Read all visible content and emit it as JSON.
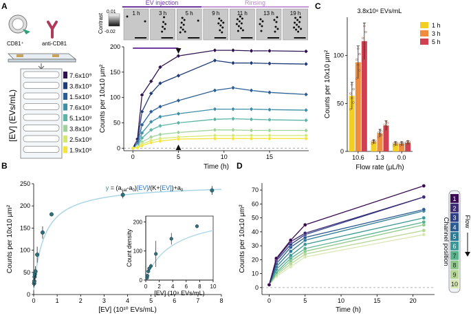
{
  "panels": {
    "A": "A",
    "B": "B",
    "C": "C",
    "D": "D"
  },
  "colors": {
    "conc": [
      "#2f1250",
      "#1f3c78",
      "#2a5f96",
      "#3d8ea6",
      "#5cb4a7",
      "#9fd39b",
      "#d3e86e",
      "#f5e53a"
    ],
    "flow": {
      "h1": "#f2cf24",
      "h3": "#ef8c3d",
      "h5": "#d13f53"
    },
    "channels": [
      "#3a0a52",
      "#3d2b78",
      "#2e3f86",
      "#2a5b92",
      "#2e7b96",
      "#3b9896",
      "#58b28b",
      "#8ec98a",
      "#b6d793",
      "#d9e7b5"
    ],
    "inj": "#6d3aa0",
    "rinse": "#c39ad6",
    "fit": "#a9d6e6"
  },
  "panelA": {
    "schematic": {
      "cd81_label": "CD81⁺",
      "anti_label": "anti-CD81",
      "yaxis_label": "[EV] (EVs/mL)",
      "concentrations": [
        "7.6x10⁹",
        "3.8x10⁹",
        "1.5x10⁹",
        "7.6x10⁸",
        "5.1x10⁸",
        "3.8x10⁸",
        "2.5x10⁸",
        "1.9x10⁸"
      ]
    },
    "strip": {
      "inj_label": "EV injection",
      "rinse_label": "Rinsing",
      "frames": [
        "1 h",
        "3 h",
        "5 h",
        "9 h",
        "11 h",
        "13 h",
        "19 h"
      ],
      "contrast_label": "Contrast",
      "contrast_max": "0.01",
      "contrast_min": "-0.02"
    }
  },
  "chart_data": [
    {
      "panel": "A",
      "type": "line",
      "xlabel": "Time (h)",
      "ylabel": "Counts per 10x10 μm²",
      "xlim": [
        -1,
        19.3
      ],
      "ylim": [
        -5,
        200
      ],
      "xticks": [
        "0",
        "5",
        "10",
        "15"
      ],
      "yticks": [
        "0",
        "50",
        "100",
        "150",
        "200"
      ],
      "x": [
        0,
        0.5,
        1,
        2,
        3,
        5,
        9,
        11,
        13,
        15,
        19
      ],
      "series": [
        {
          "name": "7.6x10⁹",
          "values": [
            0,
            18,
            105,
            132,
            160,
            182,
            193,
            193,
            192,
            192,
            191
          ]
        },
        {
          "name": "3.8x10⁹",
          "values": [
            0,
            12,
            72,
            108,
            128,
            143,
            173,
            168,
            168,
            167,
            166
          ]
        },
        {
          "name": "1.5x10⁹",
          "values": [
            0,
            8,
            46,
            72,
            82,
            94,
            114,
            119,
            114,
            110,
            106
          ]
        },
        {
          "name": "7.6x10⁸",
          "values": [
            0,
            5,
            30,
            52,
            62,
            68,
            77,
            77,
            77,
            76,
            75
          ]
        },
        {
          "name": "5.1x10⁸",
          "values": [
            0,
            3,
            20,
            36,
            44,
            50,
            57,
            58,
            57,
            56,
            55
          ]
        },
        {
          "name": "3.8x10⁸",
          "values": [
            0,
            2,
            12,
            22,
            27,
            31,
            36,
            36,
            35,
            35,
            35
          ]
        },
        {
          "name": "2.5x10⁸",
          "values": [
            0,
            1,
            8,
            15,
            19,
            22,
            25,
            25,
            25,
            25,
            25
          ]
        },
        {
          "name": "1.9x10⁸",
          "values": [
            0,
            1,
            5,
            11,
            14,
            18,
            19,
            19,
            19,
            19,
            19
          ]
        }
      ],
      "annotations": [
        "arrow at 5 h",
        "dashed baseline at 0"
      ]
    },
    {
      "panel": "B",
      "type": "scatter",
      "xlabel": "[EV] (10¹⁰ EVs/mL)",
      "ylabel": "Counts per 10x10 μm²",
      "xlim": [
        0,
        8
      ],
      "ylim": [
        0,
        250
      ],
      "xticks": [
        "0",
        "1",
        "2",
        "3",
        "4",
        "5",
        "6",
        "7",
        "8"
      ],
      "yticks": [
        "0",
        "50",
        "100",
        "150",
        "200",
        "250"
      ],
      "points": [
        {
          "x": 0.019,
          "y": 25,
          "err": 9
        },
        {
          "x": 0.025,
          "y": 30,
          "err": 10
        },
        {
          "x": 0.038,
          "y": 40,
          "err": 10
        },
        {
          "x": 0.051,
          "y": 46,
          "err": 11
        },
        {
          "x": 0.076,
          "y": 52,
          "err": 12
        },
        {
          "x": 0.15,
          "y": 90,
          "err": 18
        },
        {
          "x": 0.38,
          "y": 140,
          "err": 14
        },
        {
          "x": 0.76,
          "y": 181,
          "err": 4
        },
        {
          "x": 3.8,
          "y": 225,
          "err": 8
        },
        {
          "x": 7.6,
          "y": 235,
          "err": 10
        }
      ],
      "fit": {
        "a_sat": 250,
        "a0": 10,
        "K": 0.45
      },
      "fit_text": {
        "y": "y",
        "eq1": " = (a",
        "sat": "sat",
        "eq2": "-a",
        "zero0": "0",
        "eq3": ")",
        "ev1": "[EV]",
        "eq4": "/(K+",
        "ev2": "[EV]",
        "eq5": ")+a",
        "zero1": "0"
      },
      "inset": {
        "xlabel": "[EV] (10⁹ EVs/mL)",
        "ylabel": "Count density",
        "xticks": [
          "0",
          "2",
          "4",
          "6",
          "8",
          "10"
        ],
        "yticks": [
          "0",
          "100",
          "200"
        ],
        "points": [
          {
            "x": 0.19,
            "y": 8,
            "err": 3
          },
          {
            "x": 0.25,
            "y": 15,
            "err": 4
          },
          {
            "x": 0.38,
            "y": 30,
            "err": 5
          },
          {
            "x": 0.51,
            "y": 40,
            "err": 6
          },
          {
            "x": 0.76,
            "y": 48,
            "err": 8
          },
          {
            "x": 1.5,
            "y": 90,
            "err": 45
          },
          {
            "x": 3.8,
            "y": 142,
            "err": 20
          },
          {
            "x": 7.6,
            "y": 185,
            "err": 6
          }
        ]
      }
    },
    {
      "panel": "C",
      "type": "bar",
      "title": "3.8x10⁸ EVs/mL",
      "xlabel": "Flow rate (μL/h)",
      "ylabel": "Counts per 10x10 μm²",
      "categories": [
        "10.6",
        "1.3",
        "0.0"
      ],
      "ylim": [
        0,
        140
      ],
      "yticks": [
        "0",
        "50",
        "100"
      ],
      "series": [
        {
          "name": "1 h",
          "values": [
            58,
            10,
            8
          ],
          "err": [
            14,
            2,
            2
          ]
        },
        {
          "name": "3 h",
          "values": [
            93,
            19,
            8
          ],
          "err": [
            17,
            4,
            2
          ]
        },
        {
          "name": "5 h",
          "values": [
            115,
            27,
            9
          ],
          "err": [
            19,
            5,
            2
          ]
        }
      ],
      "legend": [
        "1 h",
        "3 h",
        "5 h"
      ]
    },
    {
      "panel": "D",
      "type": "line",
      "xlabel": "Time (h)",
      "ylabel": "Counts per 10x10 μm²",
      "xlim": [
        -1,
        23
      ],
      "ylim": [
        -5,
        75
      ],
      "xticks": [
        "0",
        "5",
        "10",
        "15",
        "20"
      ],
      "yticks": [
        "0",
        "10",
        "20",
        "30",
        "40",
        "50",
        "60",
        "70"
      ],
      "x": [
        0,
        1,
        3,
        5,
        21.5
      ],
      "series": [
        {
          "name": "1",
          "values": [
            2,
            21,
            34,
            45,
            73
          ]
        },
        {
          "name": "2",
          "values": [
            2,
            20,
            33,
            39,
            65
          ]
        },
        {
          "name": "3",
          "values": [
            2,
            19,
            31,
            38,
            65
          ]
        },
        {
          "name": "4",
          "values": [
            2,
            17,
            29,
            36,
            56
          ]
        },
        {
          "name": "5",
          "values": [
            2,
            15,
            26,
            34,
            55
          ]
        },
        {
          "name": "6",
          "values": [
            2,
            13,
            23,
            31,
            50
          ]
        },
        {
          "name": "7",
          "values": [
            2,
            11,
            21,
            28,
            47
          ]
        },
        {
          "name": "8",
          "values": [
            2,
            10,
            19,
            26,
            45
          ]
        },
        {
          "name": "9",
          "values": [
            2,
            9,
            17,
            24,
            41
          ]
        },
        {
          "name": "10",
          "values": [
            2,
            8,
            15,
            22,
            38
          ]
        }
      ],
      "legend": {
        "channels": [
          "1",
          "2",
          "3",
          "4",
          "5",
          "6",
          "7",
          "8",
          "9",
          "10"
        ],
        "position_label": "Channel position",
        "flow_label": "Flow"
      }
    }
  ]
}
